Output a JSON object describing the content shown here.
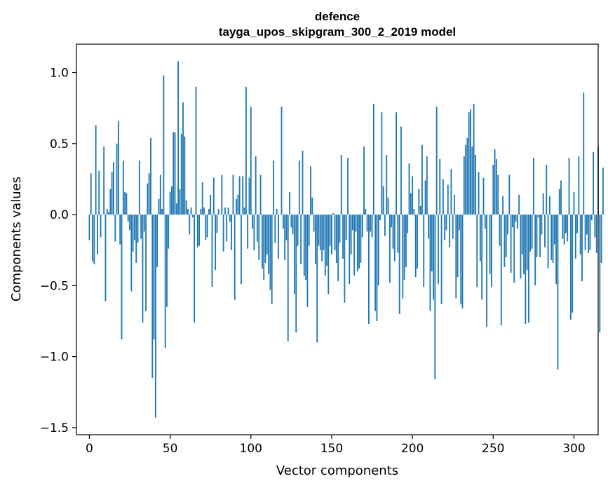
{
  "chart_data": {
    "type": "bar",
    "title": "defence",
    "subtitle": "tayga_upos_skipgram_300_2_2019 model",
    "xlabel": "Vector components",
    "ylabel": "Components values",
    "xlim": [
      -8,
      315
    ],
    "ylim": [
      -1.55,
      1.2
    ],
    "xticks": [
      0,
      50,
      100,
      150,
      200,
      250,
      300
    ],
    "yticks": [
      -1.5,
      -1.0,
      -0.5,
      0.0,
      0.5,
      1.0
    ],
    "ytick_labels": [
      "−1.5",
      "−1.0",
      "−0.5",
      "0.0",
      "0.5",
      "1.0"
    ],
    "bar_color": "#1f77b4",
    "grid": false,
    "values": [
      -0.18,
      0.29,
      -0.33,
      -0.35,
      0.63,
      -0.28,
      0.31,
      -0.16,
      0.0,
      0.48,
      -0.61,
      0.04,
      0.02,
      0.18,
      0.3,
      0.37,
      -0.19,
      0.5,
      0.66,
      -0.21,
      -0.88,
      0.38,
      0.16,
      0.15,
      -0.05,
      -0.11,
      -0.54,
      -0.26,
      -0.18,
      -0.34,
      -0.2,
      0.38,
      -0.17,
      -0.76,
      -0.12,
      -0.68,
      0.22,
      0.29,
      0.54,
      -1.15,
      -0.88,
      -1.43,
      -0.37,
      0.11,
      0.28,
      0.04,
      0.98,
      -0.94,
      -0.65,
      -0.24,
      0.16,
      0.2,
      0.58,
      0.58,
      0.08,
      1.08,
      0.18,
      0.57,
      0.79,
      0.55,
      0.1,
      0.04,
      -0.14,
      0.05,
      -0.02,
      -0.76,
      0.9,
      -0.23,
      -0.22,
      0.04,
      0.23,
      0.05,
      -0.18,
      -0.16,
      0.04,
      0.14,
      -0.51,
      0.26,
      -0.39,
      -0.13,
      0.04,
      0.0,
      0.28,
      -0.26,
      0.05,
      -0.19,
      0.05,
      -0.05,
      -0.25,
      0.28,
      -0.6,
      0.11,
      0.14,
      0.27,
      -0.49,
      0.27,
      0.05,
      0.9,
      -0.24,
      0.26,
      0.76,
      -0.1,
      -0.25,
      0.41,
      -0.19,
      -0.32,
      0.28,
      -0.38,
      -0.46,
      -0.34,
      -0.28,
      -0.42,
      -0.53,
      -0.63,
      0.38,
      -0.2,
      0.04,
      -0.31,
      0.0,
      0.76,
      -0.1,
      -0.32,
      -0.18,
      -0.89,
      0.16,
      -0.09,
      -0.14,
      -0.56,
      -0.83,
      -0.22,
      0.38,
      -0.35,
      0.45,
      -0.43,
      -0.46,
      -0.65,
      -0.22,
      0.34,
      0.12,
      -0.12,
      -0.35,
      -0.9,
      -0.22,
      -0.25,
      -0.33,
      -0.25,
      -0.43,
      -0.36,
      -0.56,
      -0.22,
      -0.28,
      0.01,
      -0.25,
      -0.34,
      -0.47,
      -0.2,
      0.42,
      -0.31,
      -0.62,
      -0.18,
      0.4,
      -0.49,
      -0.28,
      -0.11,
      -0.43,
      -0.12,
      -0.4,
      -0.38,
      -0.34,
      -0.16,
      0.48,
      0.04,
      -0.12,
      -0.77,
      -0.12,
      -0.16,
      0.78,
      -0.68,
      -0.75,
      -0.5,
      -0.04,
      0.72,
      0.2,
      -0.15,
      0.42,
      0.12,
      -0.48,
      -0.09,
      -0.24,
      -0.33,
      0.72,
      -0.27,
      -0.7,
      0.62,
      -0.59,
      -0.46,
      -0.37,
      -0.13,
      0.36,
      0.15,
      0.27,
      0.04,
      -0.44,
      -0.38,
      0.18,
      0.06,
      0.49,
      -0.51,
      0.24,
      0.41,
      -0.17,
      -0.68,
      -0.4,
      -0.6,
      -1.16,
      0.76,
      -0.49,
      0.39,
      -0.63,
      0.25,
      -0.18,
      -0.11,
      0.21,
      -0.23,
      0.32,
      -0.17,
      0.14,
      -0.59,
      -0.44,
      -0.11,
      -0.63,
      -0.66,
      0.41,
      0.49,
      0.54,
      0.72,
      0.74,
      0.48,
      0.78,
      0.42,
      -0.51,
      0.3,
      -0.33,
      -0.6,
      0.26,
      -0.1,
      -0.79,
      0.0,
      -0.42,
      -0.51,
      0.35,
      0.46,
      0.39,
      0.28,
      -0.22,
      -0.78,
      0.13,
      -0.37,
      -0.3,
      -0.14,
      0.28,
      -0.41,
      -0.09,
      -0.48,
      -0.05,
      -0.1,
      0.14,
      -0.45,
      -0.28,
      -0.42,
      -0.77,
      -0.39,
      -0.76,
      -0.26,
      -0.24,
      0.4,
      -0.5,
      -0.3,
      -0.02,
      -0.3,
      -0.14,
      0.15,
      -0.23,
      0.35,
      -0.38,
      0.13,
      -0.32,
      -0.34,
      -0.21,
      -0.49,
      -1.09,
      0.18,
      0.24,
      -0.17,
      -0.21,
      -0.13,
      -0.19,
      0.4,
      -0.74,
      -0.69,
      0.16,
      -0.31,
      -0.13,
      0.41,
      -0.28,
      -0.47,
      0.86,
      -0.25,
      -0.14,
      -0.27,
      -0.25,
      -0.04,
      0.44,
      -0.16,
      -0.27,
      0.48,
      -0.83,
      -0.34,
      0.33
    ]
  }
}
